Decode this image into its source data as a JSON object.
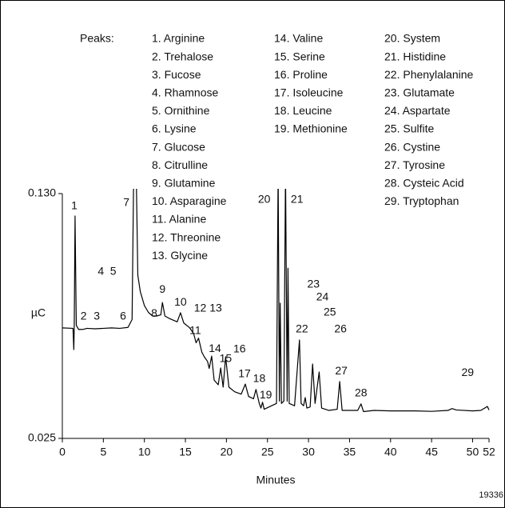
{
  "chart_data": {
    "type": "line",
    "peaks_title": "Peaks:",
    "peaks": [
      "1. Arginine",
      "2. Trehalose",
      "3. Fucose",
      "4. Rhamnose",
      "5. Ornithine",
      "6. Lysine",
      "7. Glucose",
      "8. Citrulline",
      "9. Glutamine",
      "10. Asparagine",
      "11. Alanine",
      "12. Threonine",
      "13. Glycine",
      "14. Valine",
      "15. Serine",
      "16. Proline",
      "17. Isoleucine",
      "18. Leucine",
      "19. Methionine",
      "20. System",
      "21. Histidine",
      "22. Phenylalanine",
      "23. Glutamate",
      "24. Aspartate",
      "25. Sulfite",
      "26. Cystine",
      "27. Tyrosine",
      "28. Cysteic Acid",
      "29. Tryptophan"
    ],
    "x_label": "Minutes",
    "y_label": "µC",
    "figure_id": "19336",
    "xlim": [
      0,
      52
    ],
    "xticks": [
      0,
      5,
      10,
      15,
      20,
      25,
      30,
      35,
      40,
      45,
      50,
      52
    ],
    "ylim": [
      0.025,
      0.13
    ],
    "yticks": [
      {
        "value": 0.025,
        "label": "0.025"
      },
      {
        "value": 0.13,
        "label": "0.130"
      }
    ],
    "color": "#000000",
    "x": [
      0,
      1.3,
      1.4,
      1.45,
      1.55,
      1.7,
      2.0,
      2.6,
      3.0,
      4.0,
      5.0,
      6.0,
      7.0,
      8.0,
      8.5,
      8.7,
      9.0,
      9.2,
      9.5,
      10.0,
      10.5,
      11.0,
      11.5,
      12.0,
      12.2,
      12.5,
      13.0,
      14.0,
      14.4,
      14.8,
      15.5,
      16.0,
      16.3,
      16.6,
      17.0,
      17.3,
      17.7,
      17.9,
      18.2,
      18.5,
      19.0,
      19.3,
      19.6,
      19.9,
      20.3,
      21.0,
      21.8,
      22.3,
      22.7,
      23.3,
      23.6,
      24.0,
      24.2,
      24.4,
      24.6,
      25.5,
      26.1,
      26.3,
      26.45,
      26.55,
      26.7,
      27.0,
      27.2,
      27.4,
      27.5,
      27.65,
      28.3,
      28.9,
      29.1,
      29.4,
      29.6,
      29.8,
      30.2,
      30.5,
      30.8,
      31.3,
      31.6,
      32.5,
      33.5,
      33.8,
      34.1,
      36.0,
      36.4,
      36.7,
      38.0,
      40.0,
      43.0,
      45.0,
      47.0,
      47.5,
      48.0,
      50.0,
      51.0,
      51.8,
      52.0
    ],
    "y": [
      0.0724,
      0.0722,
      0.0631,
      0.0722,
      0.1204,
      0.0735,
      0.0717,
      0.0718,
      0.0722,
      0.072,
      0.0722,
      0.0724,
      0.0722,
      0.0726,
      0.076,
      0.14,
      0.14,
      0.095,
      0.088,
      0.082,
      0.079,
      0.0775,
      0.0775,
      0.078,
      0.0833,
      0.0775,
      0.0765,
      0.075,
      0.0789,
      0.0745,
      0.0725,
      0.07,
      0.066,
      0.068,
      0.062,
      0.06,
      0.058,
      0.055,
      0.0603,
      0.05,
      0.048,
      0.0552,
      0.047,
      0.06,
      0.047,
      0.045,
      0.044,
      0.0483,
      0.043,
      0.042,
      0.046,
      0.04,
      0.038,
      0.0405,
      0.0375,
      0.039,
      0.04,
      0.14,
      0.041,
      0.083,
      0.04,
      0.041,
      0.14,
      0.041,
      0.098,
      0.04,
      0.039,
      0.0672,
      0.04,
      0.039,
      0.0425,
      0.038,
      0.0385,
      0.0569,
      0.04,
      0.0535,
      0.038,
      0.037,
      0.0375,
      0.0494,
      0.037,
      0.037,
      0.0398,
      0.0365,
      0.037,
      0.0368,
      0.0368,
      0.0366,
      0.037,
      0.0378,
      0.0372,
      0.0368,
      0.037,
      0.0387,
      0.0372
    ],
    "annotations": [
      {
        "text": "1",
        "x": 1.46,
        "y": 0.1245
      },
      {
        "text": "2",
        "x": 2.6,
        "y": 0.0772
      },
      {
        "text": "3",
        "x": 4.2,
        "y": 0.0772
      },
      {
        "text": "4",
        "x": 4.7,
        "y": 0.0964
      },
      {
        "text": "5",
        "x": 6.2,
        "y": 0.0964
      },
      {
        "text": "6",
        "x": 7.4,
        "y": 0.0772
      },
      {
        "text": "7",
        "x": 7.8,
        "y": 0.1259
      },
      {
        "text": "8",
        "x": 11.2,
        "y": 0.0785
      },
      {
        "text": "9",
        "x": 12.2,
        "y": 0.0888
      },
      {
        "text": "10",
        "x": 14.4,
        "y": 0.0833
      },
      {
        "text": "11",
        "x": 16.2,
        "y": 0.071
      },
      {
        "text": "12",
        "x": 16.8,
        "y": 0.0806
      },
      {
        "text": "13",
        "x": 18.7,
        "y": 0.0806
      },
      {
        "text": "14",
        "x": 18.6,
        "y": 0.0634
      },
      {
        "text": "15",
        "x": 19.9,
        "y": 0.059
      },
      {
        "text": "16",
        "x": 21.6,
        "y": 0.0631
      },
      {
        "text": "17",
        "x": 22.2,
        "y": 0.0525
      },
      {
        "text": "18",
        "x": 24.0,
        "y": 0.0504
      },
      {
        "text": "19",
        "x": 24.8,
        "y": 0.0435
      },
      {
        "text": "20",
        "x": 24.6,
        "y": 0.1273
      },
      {
        "text": "21",
        "x": 28.6,
        "y": 0.1273
      },
      {
        "text": "22",
        "x": 29.2,
        "y": 0.0717
      },
      {
        "text": "23",
        "x": 30.6,
        "y": 0.0909
      },
      {
        "text": "24",
        "x": 31.7,
        "y": 0.0854
      },
      {
        "text": "25",
        "x": 32.6,
        "y": 0.0789
      },
      {
        "text": "26",
        "x": 33.9,
        "y": 0.0717
      },
      {
        "text": "27",
        "x": 34.0,
        "y": 0.0538
      },
      {
        "text": "28",
        "x": 36.4,
        "y": 0.0442
      },
      {
        "text": "29",
        "x": 49.4,
        "y": 0.0531
      }
    ]
  }
}
